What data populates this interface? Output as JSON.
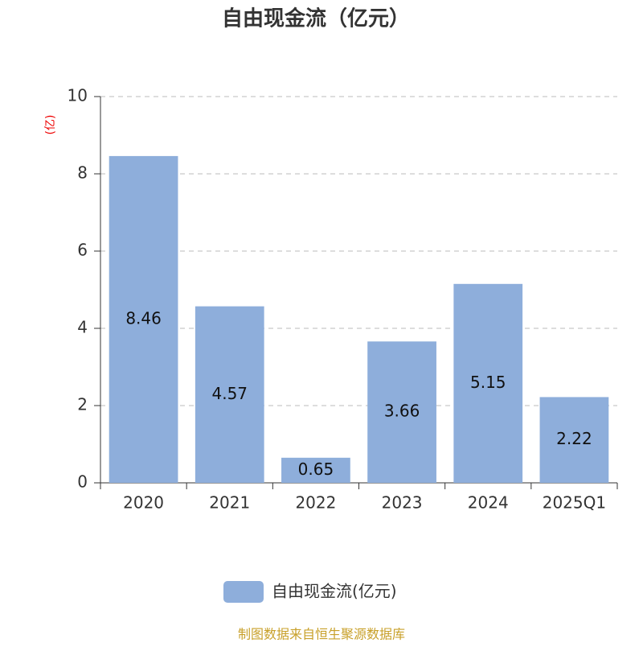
{
  "chart_data": {
    "type": "bar",
    "title": "自由现金流（亿元）",
    "y_label": "(亿)",
    "categories": [
      "2020",
      "2021",
      "2022",
      "2023",
      "2024",
      "2025Q1"
    ],
    "series": [
      {
        "name": "自由现金流(亿元)",
        "color": "#8eaedb",
        "values": [
          8.46,
          4.57,
          0.65,
          3.66,
          5.15,
          2.22
        ]
      }
    ],
    "ylim": [
      0,
      10
    ],
    "yticks": [
      0,
      2,
      4,
      6,
      8,
      10
    ],
    "grid": true,
    "legend": "bottom",
    "source": "制图数据来自恒生聚源数据库"
  }
}
